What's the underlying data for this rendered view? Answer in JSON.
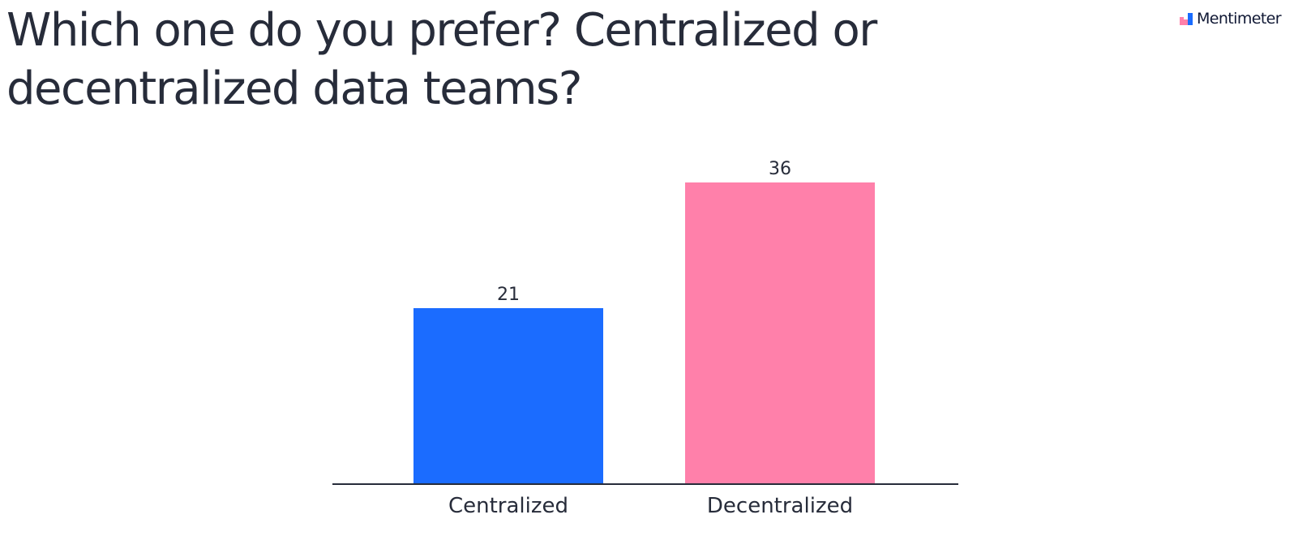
{
  "header": {
    "title": "Which one do you prefer? Centralized or decentralized data teams?"
  },
  "brand": {
    "name": "Mentimeter",
    "icon": "mentimeter-logo-icon"
  },
  "colors": {
    "text": "#272c3a",
    "axis": "#272c3a",
    "logo_pink": "#ff80aa",
    "logo_blue": "#196cff"
  },
  "chart_data": {
    "type": "bar",
    "categories": [
      "Centralized",
      "Decentralized"
    ],
    "values": [
      21,
      36
    ],
    "colors": [
      "#1b6cff",
      "#ff80aa"
    ],
    "title": "Which one do you prefer? Centralized or decentralized data teams?",
    "xlabel": "",
    "ylabel": "",
    "ylim": [
      0,
      36
    ],
    "grid": false,
    "legend": "none",
    "data_labels": true
  }
}
